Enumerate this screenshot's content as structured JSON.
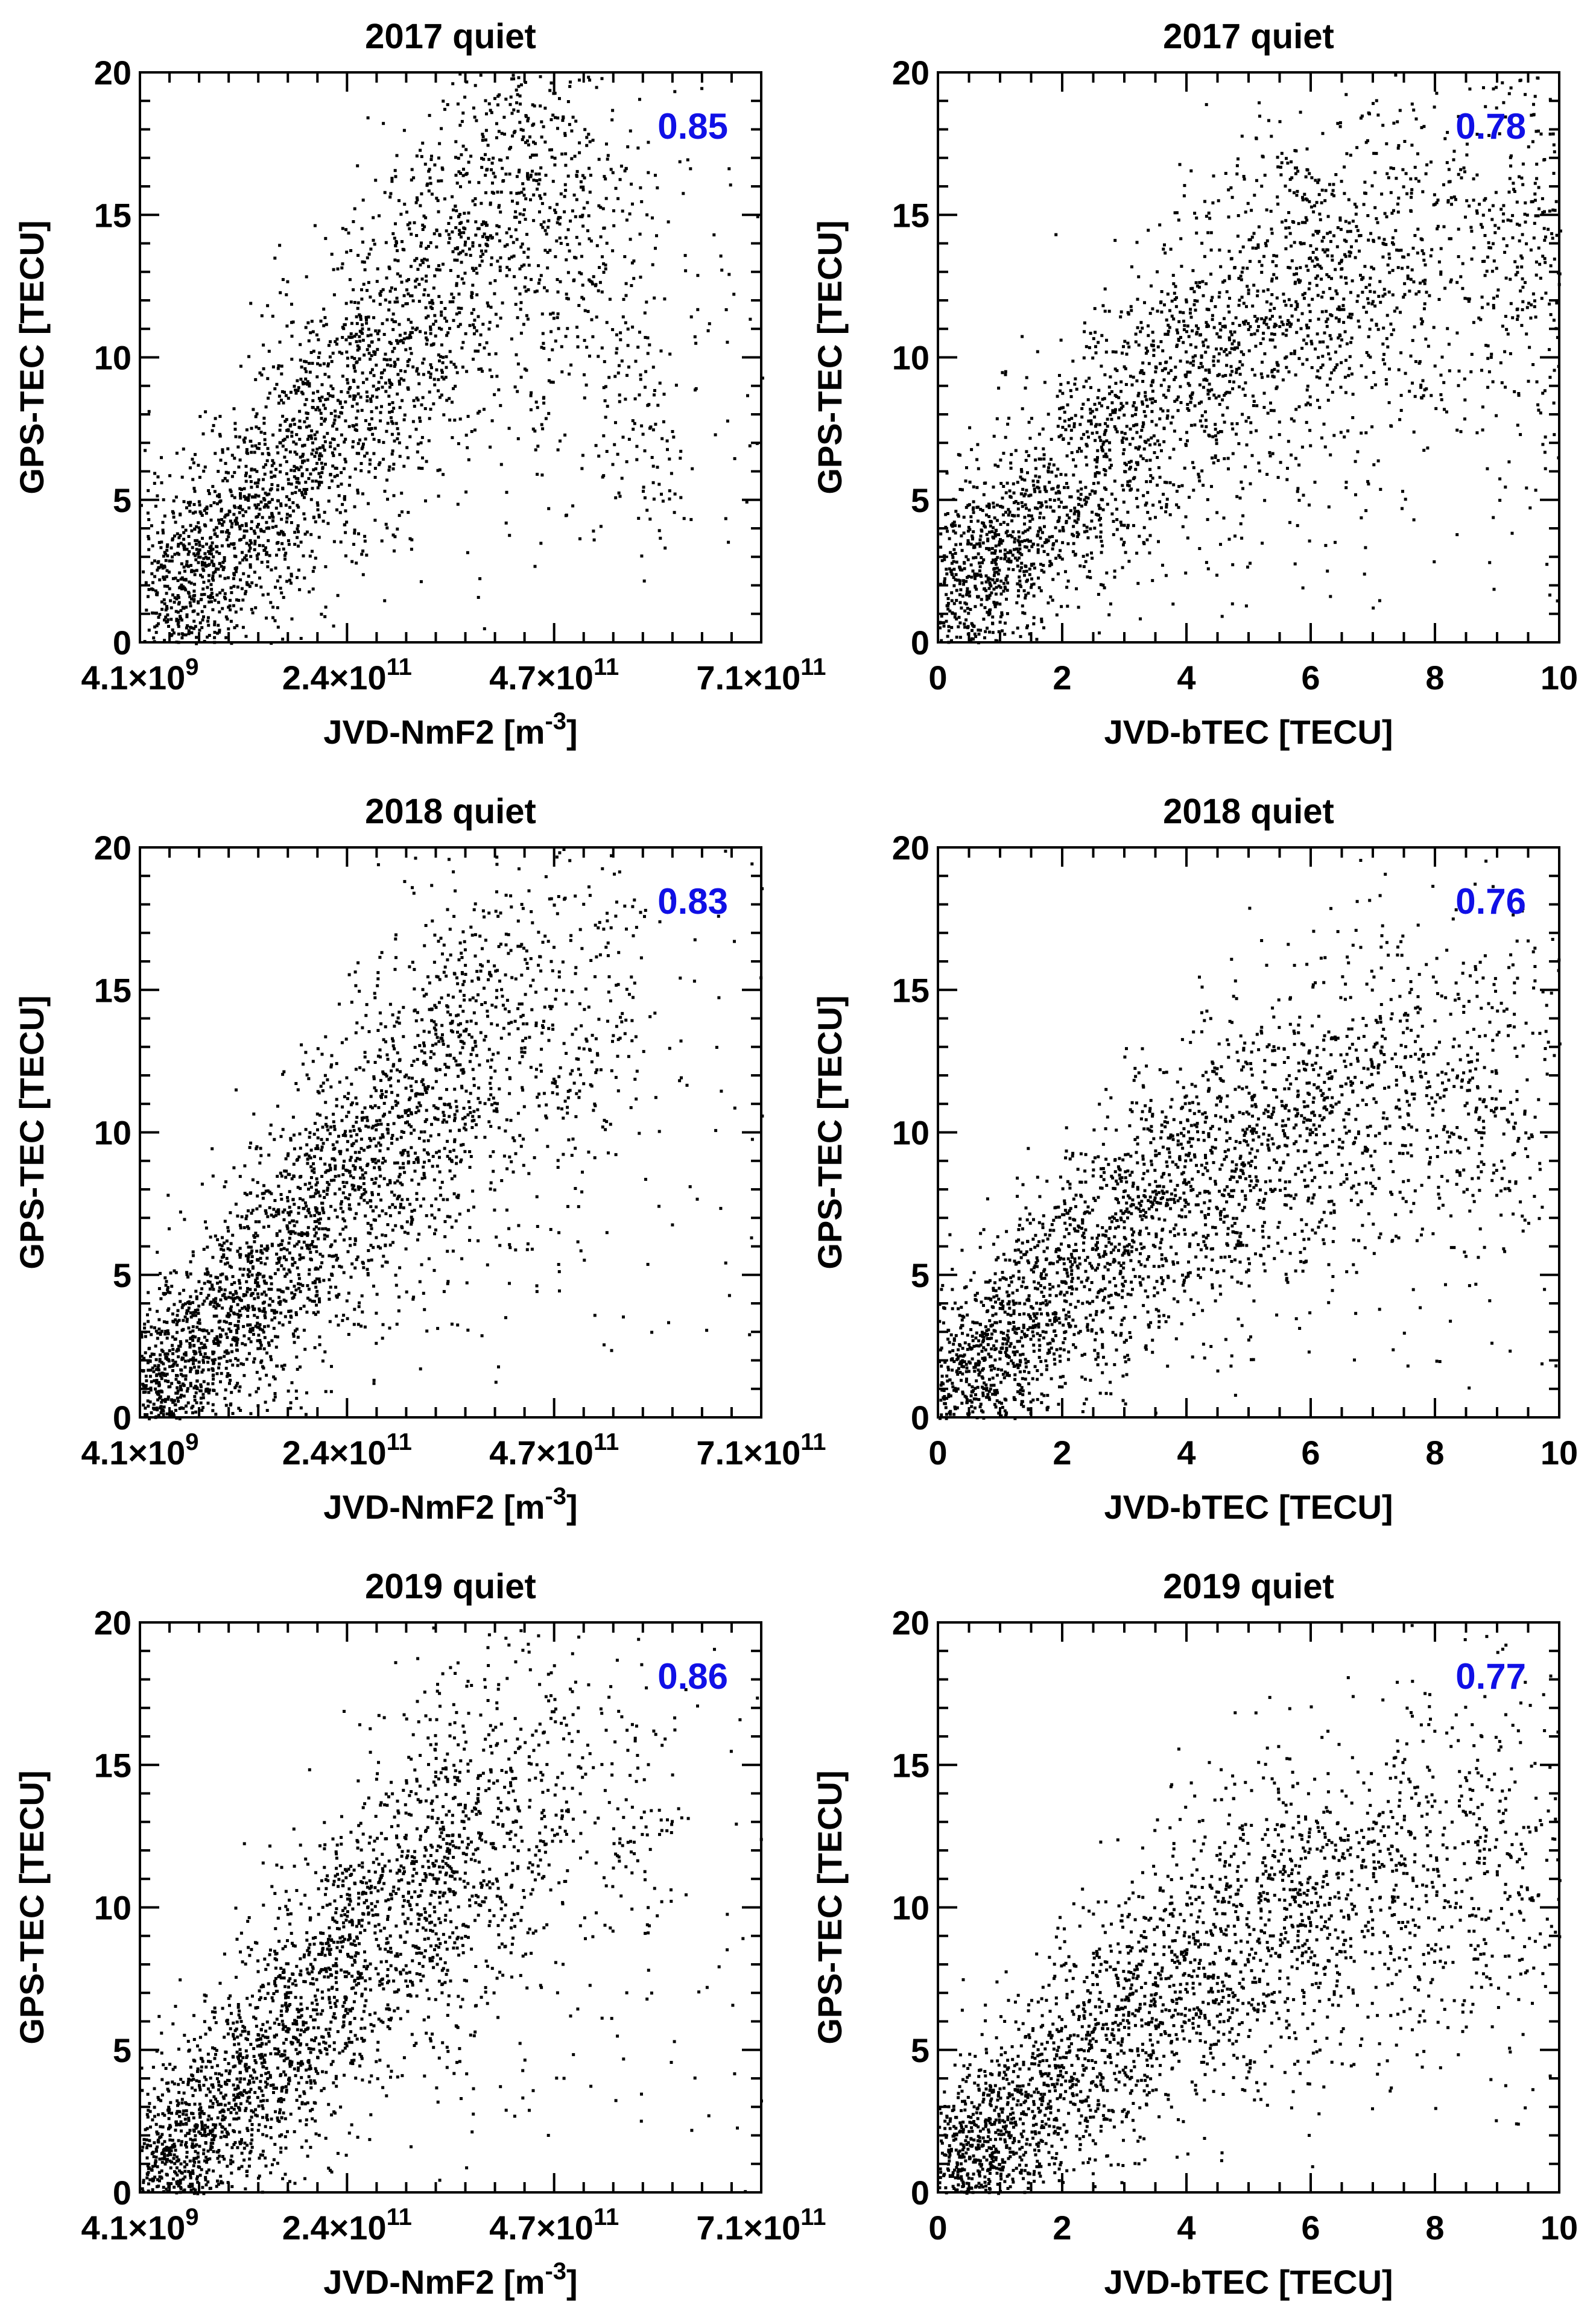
{
  "colors": {
    "points": "#000000",
    "correlation": "#1010e6",
    "background": "#ffffff"
  },
  "chart_data": [
    {
      "type": "scatter",
      "title": "2017 quiet",
      "xlabel_main": "JVD-NmF2 [m",
      "xlabel_sup": "-3",
      "xlabel_end": "]",
      "ylabel": "GPS-TEC [TECU]",
      "xlim": [
        4100000000.0,
        710000000000.0
      ],
      "ylim": [
        0,
        20
      ],
      "xticks": [
        4100000000.0,
        240000000000.0,
        470000000000.0,
        710000000000.0
      ],
      "xtick_labels": [
        {
          "mant": "4.1×10",
          "exp": "9"
        },
        {
          "mant": "2.4×10",
          "exp": "11"
        },
        {
          "mant": "4.7×10",
          "exp": "11"
        },
        {
          "mant": "7.1×10",
          "exp": "11"
        }
      ],
      "yticks": [
        0,
        5,
        10,
        15,
        20
      ],
      "ytick_labels": [
        "0",
        "5",
        "10",
        "15",
        "20"
      ],
      "correlation": "0.85",
      "points": [
        [
          40000000000.0,
          1.8
        ],
        [
          60000000000.0,
          2.3
        ],
        [
          80000000000.0,
          2.9
        ],
        [
          100000000000.0,
          3.6
        ],
        [
          120000000000.0,
          4.3
        ],
        [
          140000000000.0,
          5.0
        ],
        [
          160000000000.0,
          5.9
        ],
        [
          180000000000.0,
          6.7
        ],
        [
          200000000000.0,
          7.5
        ],
        [
          220000000000.0,
          8.2
        ],
        [
          240000000000.0,
          9.0
        ],
        [
          260000000000.0,
          9.7
        ],
        [
          280000000000.0,
          10.4
        ],
        [
          300000000000.0,
          11.1
        ],
        [
          320000000000.0,
          11.8
        ],
        [
          340000000000.0,
          12.5
        ],
        [
          360000000000.0,
          13.2
        ],
        [
          380000000000.0,
          13.9
        ],
        [
          400000000000.0,
          14.6
        ],
        [
          420000000000.0,
          15.2
        ],
        [
          440000000000.0,
          15.8
        ],
        [
          460000000000.0,
          16.6
        ],
        [
          480000000000.0,
          17.2
        ],
        [
          500000000000.0,
          15.5
        ],
        [
          540000000000.0,
          13.0
        ],
        [
          580000000000.0,
          7.0
        ]
      ]
    },
    {
      "type": "scatter",
      "title": "2017 quiet",
      "xlabel_main": "JVD-bTEC [TECU]",
      "xlabel_sup": "",
      "xlabel_end": "",
      "ylabel": "GPS-TEC [TECU]",
      "xlim": [
        0,
        10
      ],
      "ylim": [
        0,
        20
      ],
      "xticks": [
        0,
        2,
        4,
        6,
        8,
        10
      ],
      "xtick_labels": [
        {
          "mant": "0",
          "exp": ""
        },
        {
          "mant": "2",
          "exp": ""
        },
        {
          "mant": "4",
          "exp": ""
        },
        {
          "mant": "6",
          "exp": ""
        },
        {
          "mant": "8",
          "exp": ""
        },
        {
          "mant": "10",
          "exp": ""
        }
      ],
      "yticks": [
        0,
        5,
        10,
        15,
        20
      ],
      "ytick_labels": [
        "0",
        "5",
        "10",
        "15",
        "20"
      ],
      "correlation": "0.78",
      "points": [
        [
          0.3,
          1.5
        ],
        [
          0.6,
          2.4
        ],
        [
          1.0,
          3.2
        ],
        [
          1.4,
          4.1
        ],
        [
          1.8,
          5.0
        ],
        [
          2.2,
          5.9
        ],
        [
          2.6,
          6.8
        ],
        [
          3.0,
          7.6
        ],
        [
          3.4,
          8.5
        ],
        [
          3.8,
          9.3
        ],
        [
          4.2,
          10.1
        ],
        [
          4.6,
          10.8
        ],
        [
          5.0,
          11.4
        ],
        [
          5.4,
          11.9
        ],
        [
          5.8,
          12.3
        ],
        [
          6.2,
          12.7
        ],
        [
          6.6,
          13.0
        ],
        [
          7.0,
          13.2
        ],
        [
          7.6,
          13.4
        ],
        [
          8.2,
          13.6
        ],
        [
          8.8,
          13.8
        ],
        [
          9.4,
          14.0
        ],
        [
          9.8,
          14.2
        ]
      ]
    },
    {
      "type": "scatter",
      "title": "2018 quiet",
      "xlabel_main": "JVD-NmF2 [m",
      "xlabel_sup": "-3",
      "xlabel_end": "]",
      "ylabel": "GPS-TEC [TECU]",
      "xlim": [
        4100000000.0,
        710000000000.0
      ],
      "ylim": [
        0,
        20
      ],
      "xticks": [
        4100000000.0,
        240000000000.0,
        470000000000.0,
        710000000000.0
      ],
      "xtick_labels": [
        {
          "mant": "4.1×10",
          "exp": "9"
        },
        {
          "mant": "2.4×10",
          "exp": "11"
        },
        {
          "mant": "4.7×10",
          "exp": "11"
        },
        {
          "mant": "7.1×10",
          "exp": "11"
        }
      ],
      "yticks": [
        0,
        5,
        10,
        15,
        20
      ],
      "ytick_labels": [
        "0",
        "5",
        "10",
        "15",
        "20"
      ],
      "correlation": "0.83",
      "points": [
        [
          20000000000.0,
          0.8
        ],
        [
          40000000000.0,
          1.3
        ],
        [
          60000000000.0,
          1.9
        ],
        [
          80000000000.0,
          2.6
        ],
        [
          100000000000.0,
          3.4
        ],
        [
          120000000000.0,
          4.2
        ],
        [
          140000000000.0,
          5.0
        ],
        [
          160000000000.0,
          5.8
        ],
        [
          180000000000.0,
          6.6
        ],
        [
          200000000000.0,
          7.3
        ],
        [
          220000000000.0,
          8.0
        ],
        [
          240000000000.0,
          8.6
        ],
        [
          260000000000.0,
          9.2
        ],
        [
          280000000000.0,
          9.8
        ],
        [
          300000000000.0,
          10.4
        ],
        [
          320000000000.0,
          11.0
        ],
        [
          340000000000.0,
          11.6
        ],
        [
          360000000000.0,
          12.2
        ],
        [
          380000000000.0,
          12.8
        ],
        [
          400000000000.0,
          13.4
        ],
        [
          440000000000.0,
          14.2
        ],
        [
          480000000000.0,
          14.8
        ],
        [
          540000000000.0,
          13.6
        ]
      ]
    },
    {
      "type": "scatter",
      "title": "2018 quiet",
      "xlabel_main": "JVD-bTEC [TECU]",
      "xlabel_sup": "",
      "xlabel_end": "",
      "ylabel": "GPS-TEC [TECU]",
      "xlim": [
        0,
        10
      ],
      "ylim": [
        0,
        20
      ],
      "xticks": [
        0,
        2,
        4,
        6,
        8,
        10
      ],
      "xtick_labels": [
        {
          "mant": "0",
          "exp": ""
        },
        {
          "mant": "2",
          "exp": ""
        },
        {
          "mant": "4",
          "exp": ""
        },
        {
          "mant": "6",
          "exp": ""
        },
        {
          "mant": "8",
          "exp": ""
        },
        {
          "mant": "10",
          "exp": ""
        }
      ],
      "yticks": [
        0,
        5,
        10,
        15,
        20
      ],
      "ytick_labels": [
        "0",
        "5",
        "10",
        "15",
        "20"
      ],
      "correlation": "0.76",
      "points": [
        [
          0.2,
          0.8
        ],
        [
          0.5,
          1.6
        ],
        [
          0.9,
          2.4
        ],
        [
          1.3,
          3.2
        ],
        [
          1.7,
          4.0
        ],
        [
          2.1,
          4.8
        ],
        [
          2.5,
          5.6
        ],
        [
          2.9,
          6.4
        ],
        [
          3.3,
          7.1
        ],
        [
          3.7,
          7.8
        ],
        [
          4.1,
          8.4
        ],
        [
          4.5,
          9.0
        ],
        [
          4.9,
          9.5
        ],
        [
          5.3,
          9.9
        ],
        [
          5.7,
          10.3
        ],
        [
          6.1,
          10.6
        ],
        [
          6.5,
          10.9
        ],
        [
          7.0,
          11.1
        ],
        [
          7.6,
          11.4
        ],
        [
          8.2,
          11.6
        ],
        [
          8.8,
          11.8
        ],
        [
          9.4,
          12.0
        ]
      ]
    },
    {
      "type": "scatter",
      "title": "2019 quiet",
      "xlabel_main": "JVD-NmF2 [m",
      "xlabel_sup": "-3",
      "xlabel_end": "]",
      "ylabel": "GPS-TEC [TECU]",
      "xlim": [
        4100000000.0,
        710000000000.0
      ],
      "ylim": [
        0,
        20
      ],
      "xticks": [
        4100000000.0,
        240000000000.0,
        470000000000.0,
        710000000000.0
      ],
      "xtick_labels": [
        {
          "mant": "4.1×10",
          "exp": "9"
        },
        {
          "mant": "2.4×10",
          "exp": "11"
        },
        {
          "mant": "4.7×10",
          "exp": "11"
        },
        {
          "mant": "7.1×10",
          "exp": "11"
        }
      ],
      "yticks": [
        0,
        5,
        10,
        15,
        20
      ],
      "ytick_labels": [
        "0",
        "5",
        "10",
        "15",
        "20"
      ],
      "correlation": "0.86",
      "points": [
        [
          20000000000.0,
          0.6
        ],
        [
          40000000000.0,
          1.1
        ],
        [
          60000000000.0,
          1.7
        ],
        [
          80000000000.0,
          2.4
        ],
        [
          100000000000.0,
          3.1
        ],
        [
          120000000000.0,
          3.9
        ],
        [
          140000000000.0,
          4.7
        ],
        [
          160000000000.0,
          5.5
        ],
        [
          180000000000.0,
          6.3
        ],
        [
          200000000000.0,
          7.0
        ],
        [
          220000000000.0,
          7.7
        ],
        [
          240000000000.0,
          8.3
        ],
        [
          260000000000.0,
          8.9
        ],
        [
          280000000000.0,
          9.5
        ],
        [
          300000000000.0,
          10.1
        ],
        [
          320000000000.0,
          10.7
        ],
        [
          340000000000.0,
          11.3
        ],
        [
          360000000000.0,
          11.9
        ],
        [
          380000000000.0,
          12.5
        ],
        [
          400000000000.0,
          13.0
        ],
        [
          440000000000.0,
          13.8
        ],
        [
          480000000000.0,
          14.4
        ],
        [
          560000000000.0,
          12.6
        ]
      ]
    },
    {
      "type": "scatter",
      "title": "2019 quiet",
      "xlabel_main": "JVD-bTEC [TECU]",
      "xlabel_sup": "",
      "xlabel_end": "",
      "ylabel": "GPS-TEC [TECU]",
      "xlim": [
        0,
        10
      ],
      "ylim": [
        0,
        20
      ],
      "xticks": [
        0,
        2,
        4,
        6,
        8,
        10
      ],
      "xtick_labels": [
        {
          "mant": "0",
          "exp": ""
        },
        {
          "mant": "2",
          "exp": ""
        },
        {
          "mant": "4",
          "exp": ""
        },
        {
          "mant": "6",
          "exp": ""
        },
        {
          "mant": "8",
          "exp": ""
        },
        {
          "mant": "10",
          "exp": ""
        }
      ],
      "yticks": [
        0,
        5,
        10,
        15,
        20
      ],
      "ytick_labels": [
        "0",
        "5",
        "10",
        "15",
        "20"
      ],
      "correlation": "0.77",
      "points": [
        [
          0.2,
          0.6
        ],
        [
          0.5,
          1.3
        ],
        [
          0.9,
          2.1
        ],
        [
          1.3,
          2.9
        ],
        [
          1.7,
          3.7
        ],
        [
          2.1,
          4.5
        ],
        [
          2.5,
          5.3
        ],
        [
          2.9,
          6.0
        ],
        [
          3.3,
          6.7
        ],
        [
          3.7,
          7.4
        ],
        [
          4.1,
          8.0
        ],
        [
          4.5,
          8.6
        ],
        [
          4.9,
          9.1
        ],
        [
          5.3,
          9.6
        ],
        [
          5.7,
          10.0
        ],
        [
          6.1,
          10.4
        ],
        [
          6.5,
          10.7
        ],
        [
          7.0,
          11.0
        ],
        [
          7.6,
          11.3
        ],
        [
          8.2,
          11.6
        ],
        [
          8.8,
          11.8
        ],
        [
          9.4,
          12.0
        ]
      ]
    }
  ]
}
